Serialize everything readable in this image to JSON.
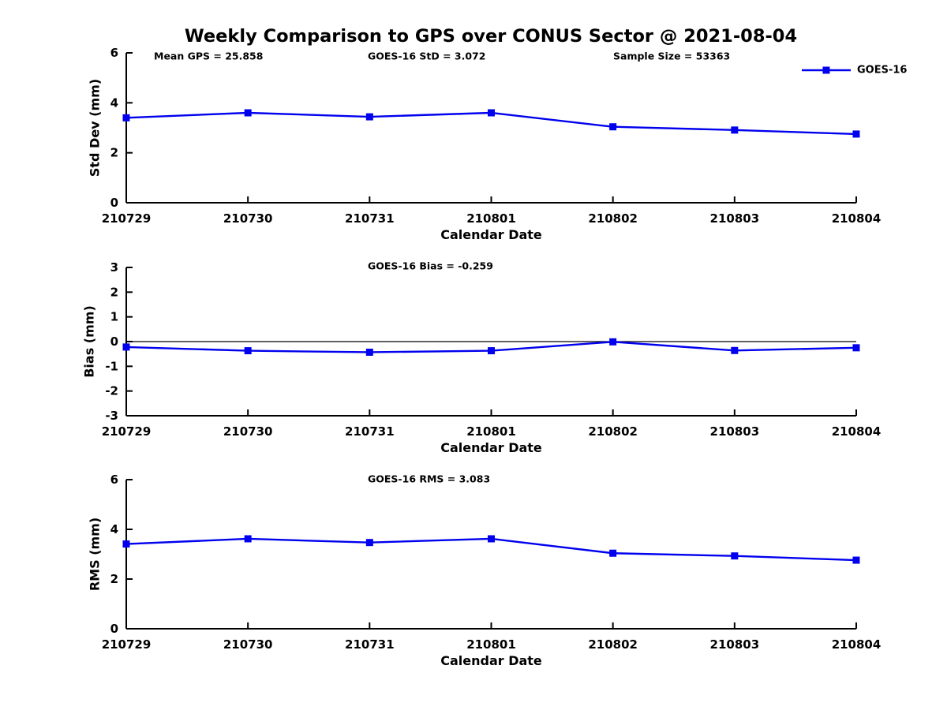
{
  "title": "Weekly Comparison to GPS over CONUS Sector @ 2021-08-04",
  "colors": {
    "line": "#0000EE",
    "axis": "#000000",
    "background": "#FFFFFF"
  },
  "legend": {
    "label": "GOES-16",
    "position": "top-right",
    "marker": "square"
  },
  "chart_data": [
    {
      "id": "std-dev",
      "type": "line",
      "categories": [
        "210729",
        "210730",
        "210731",
        "210801",
        "210802",
        "210803",
        "210804"
      ],
      "xlabel": "Calendar Date",
      "ylabel": "Std Dev (mm)",
      "ylim": [
        0,
        6
      ],
      "yticks": [
        0,
        2,
        4,
        6
      ],
      "grid": false,
      "zero_line": false,
      "annotations": [
        "Mean GPS = 25.858",
        "GOES-16 StD = 3.072",
        "Sample Size = 53363"
      ],
      "series": [
        {
          "name": "GOES-16",
          "marker": "square",
          "values": [
            3.4,
            3.6,
            3.44,
            3.6,
            3.04,
            2.91,
            2.75
          ]
        }
      ]
    },
    {
      "id": "bias",
      "type": "line",
      "categories": [
        "210729",
        "210730",
        "210731",
        "210801",
        "210802",
        "210803",
        "210804"
      ],
      "xlabel": "Calendar Date",
      "ylabel": "Bias (mm)",
      "ylim": [
        -3,
        3
      ],
      "yticks": [
        -3,
        -2,
        -1,
        0,
        1,
        2,
        3
      ],
      "grid": false,
      "zero_line": true,
      "annotations": [
        "GOES-16 Bias = -0.259"
      ],
      "series": [
        {
          "name": "GOES-16",
          "marker": "square",
          "values": [
            -0.22,
            -0.37,
            -0.43,
            -0.37,
            -0.01,
            -0.36,
            -0.25
          ]
        }
      ]
    },
    {
      "id": "rms",
      "type": "line",
      "categories": [
        "210729",
        "210730",
        "210731",
        "210801",
        "210802",
        "210803",
        "210804"
      ],
      "xlabel": "Calendar Date",
      "ylabel": "RMS (mm)",
      "ylim": [
        0,
        6
      ],
      "yticks": [
        0,
        2,
        4,
        6
      ],
      "grid": false,
      "zero_line": false,
      "annotations": [
        "GOES-16 RMS = 3.083"
      ],
      "series": [
        {
          "name": "GOES-16",
          "marker": "square",
          "values": [
            3.41,
            3.62,
            3.47,
            3.62,
            3.04,
            2.93,
            2.76
          ]
        }
      ]
    }
  ]
}
